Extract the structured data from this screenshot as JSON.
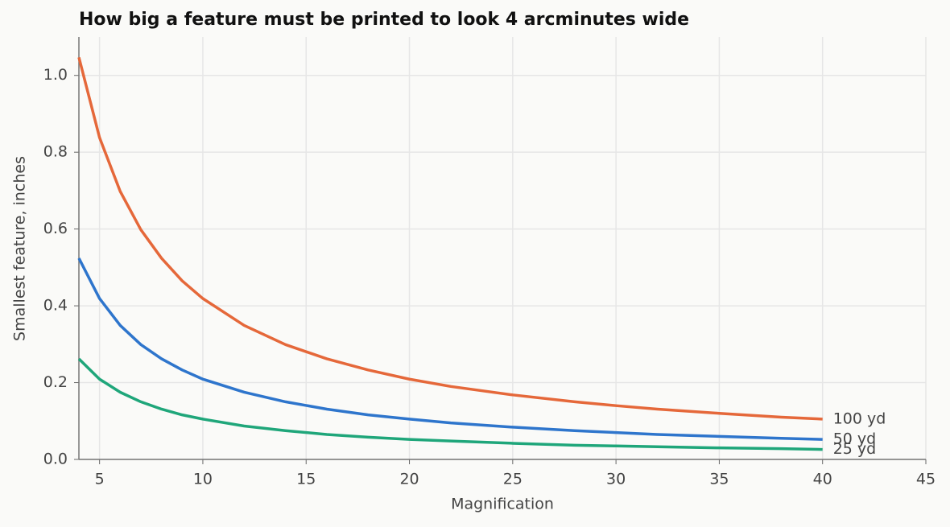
{
  "chart_data": {
    "type": "line",
    "title": "How big a feature must be printed to look 4 arcminutes wide",
    "x_label": "Magnification",
    "y_label": "Smallest feature, inches",
    "x": [
      4,
      5,
      6,
      7,
      8,
      9,
      10,
      12,
      14,
      16,
      18,
      20,
      22,
      25,
      28,
      30,
      32,
      35,
      38,
      40
    ],
    "series": [
      {
        "name": "100 yd",
        "color": "#e5683a",
        "values": [
          1.047,
          0.838,
          0.698,
          0.598,
          0.524,
          0.465,
          0.419,
          0.349,
          0.299,
          0.262,
          0.233,
          0.209,
          0.19,
          0.168,
          0.15,
          0.14,
          0.131,
          0.12,
          0.11,
          0.105
        ]
      },
      {
        "name": "50 yd",
        "color": "#2e75cc",
        "values": [
          0.524,
          0.419,
          0.349,
          0.299,
          0.262,
          0.233,
          0.209,
          0.175,
          0.15,
          0.131,
          0.116,
          0.105,
          0.095,
          0.084,
          0.075,
          0.07,
          0.065,
          0.06,
          0.055,
          0.052
        ]
      },
      {
        "name": "25 yd",
        "color": "#1fa67a",
        "values": [
          0.262,
          0.209,
          0.175,
          0.15,
          0.131,
          0.116,
          0.105,
          0.087,
          0.075,
          0.065,
          0.058,
          0.052,
          0.048,
          0.042,
          0.037,
          0.035,
          0.033,
          0.03,
          0.028,
          0.026
        ]
      }
    ],
    "xlim": [
      4,
      45
    ],
    "xticks": [
      5,
      10,
      15,
      20,
      25,
      30,
      35,
      40,
      45
    ],
    "ylim": [
      0,
      1.1
    ],
    "yticks": [
      {
        "value": 0,
        "label": "0.0"
      },
      0.2,
      0.4,
      0.6,
      0.8,
      {
        "value": 1,
        "label": "1.0"
      }
    ],
    "grid": true
  }
}
